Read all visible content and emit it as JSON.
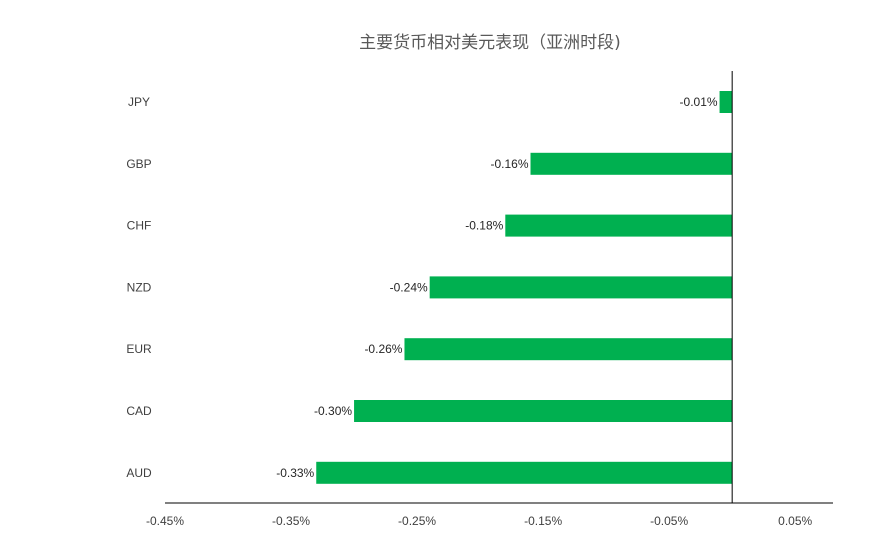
{
  "chart_data": {
    "type": "bar",
    "orientation": "horizontal",
    "title": "主要货币相对美元表现（亚洲时段)",
    "categories": [
      "JPY",
      "GBP",
      "CHF",
      "NZD",
      "EUR",
      "CAD",
      "AUD"
    ],
    "values": [
      -0.01,
      -0.16,
      -0.18,
      -0.24,
      -0.26,
      -0.3,
      -0.33
    ],
    "data_labels": [
      "-0.01%",
      "-0.16%",
      "-0.18%",
      "-0.24%",
      "-0.26%",
      "-0.30%",
      "-0.33%"
    ],
    "xlim": [
      -0.45,
      0.08
    ],
    "x_ticks": [
      -0.45,
      -0.35,
      -0.25,
      -0.15,
      -0.05,
      0.05
    ],
    "x_tick_labels": [
      "-0.45%",
      "-0.35%",
      "-0.25%",
      "-0.15%",
      "-0.05%",
      "0.05%"
    ],
    "xlabel": "",
    "ylabel": "",
    "grid": false,
    "legend": "none",
    "bar_color": "#00B050"
  }
}
